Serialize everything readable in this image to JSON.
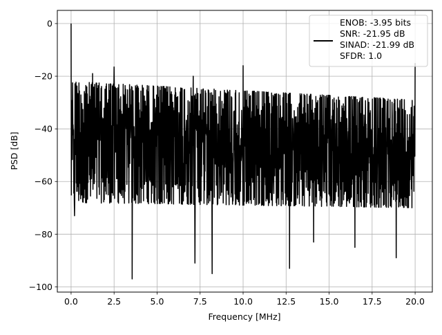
{
  "chart_data": {
    "type": "line",
    "xlabel": "Frequency [MHz]",
    "ylabel": "PSD [dB]",
    "xlim": [
      -0.8,
      21.0
    ],
    "ylim": [
      -102,
      5
    ],
    "x_ticks": [
      0.0,
      2.5,
      5.0,
      7.5,
      10.0,
      12.5,
      15.0,
      17.5,
      20.0
    ],
    "x_tick_labels": [
      "0.0",
      "2.5",
      "5.0",
      "7.5",
      "10.0",
      "12.5",
      "15.0",
      "17.5",
      "20.0"
    ],
    "y_ticks": [
      0,
      -20,
      -40,
      -60,
      -80,
      -100
    ],
    "y_tick_labels": [
      "0",
      "−20",
      "−40",
      "−60",
      "−80",
      "−100"
    ],
    "grid": true,
    "legend_position": "top-right",
    "series": [
      {
        "name": "ENOB: -3.95 bits\nSNR: -21.95 dB\nSINAD: -21.99 dB\nSFDR: 1.0",
        "color": "#000000",
        "x_range": [
          0.0,
          20.0
        ],
        "noise_floor_upper_db": [
          -22,
          -29
        ],
        "noise_floor_lower_db": [
          -68,
          -70
        ],
        "peaks": [
          {
            "x": 0.0,
            "y": 0.0
          },
          {
            "x": 1.25,
            "y": -19
          },
          {
            "x": 2.5,
            "y": -16.5
          },
          {
            "x": 7.1,
            "y": -20
          },
          {
            "x": 10.0,
            "y": -16
          },
          {
            "x": 20.0,
            "y": -15
          }
        ],
        "dips": [
          {
            "x": 0.2,
            "y": -73
          },
          {
            "x": 3.55,
            "y": -97
          },
          {
            "x": 7.2,
            "y": -91
          },
          {
            "x": 8.2,
            "y": -95
          },
          {
            "x": 12.7,
            "y": -93
          },
          {
            "x": 14.1,
            "y": -83
          },
          {
            "x": 16.5,
            "y": -85
          },
          {
            "x": 18.9,
            "y": -89
          }
        ]
      }
    ]
  }
}
